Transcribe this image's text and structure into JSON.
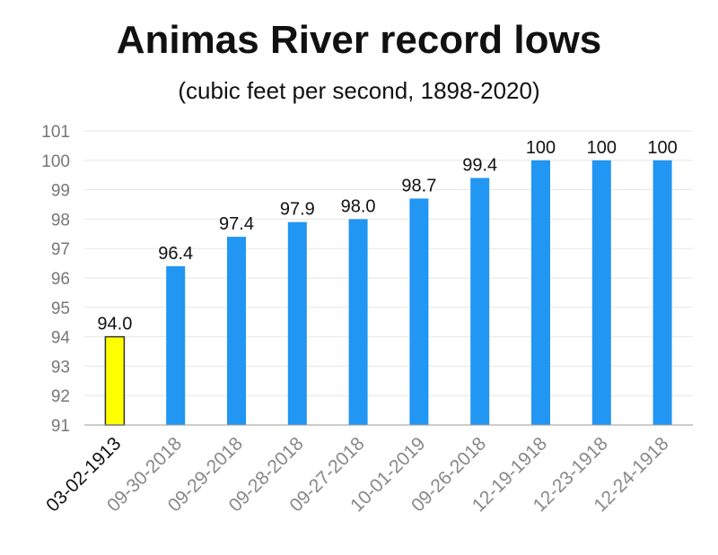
{
  "chart_data": {
    "type": "bar",
    "title": "Animas River record lows",
    "subtitle": "(cubic feet per second, 1898-2020)",
    "categories": [
      "03-02-1913",
      "09-30-2018",
      "09-29-2018",
      "09-28-2018",
      "09-27-2018",
      "10-01-2019",
      "09-26-2018",
      "12-19-1918",
      "12-23-1918",
      "12-24-1918"
    ],
    "values": [
      94.0,
      96.4,
      97.4,
      97.9,
      98.0,
      98.7,
      99.4,
      100,
      100,
      100
    ],
    "value_labels": [
      "94.0",
      "96.4",
      "97.4",
      "97.9",
      "98.0",
      "98.7",
      "99.4",
      "100",
      "100",
      "100"
    ],
    "highlight_index": 0,
    "colors": {
      "bar": "#2196F3",
      "highlight_bar": "#FFFF00",
      "highlight_border": "#333333",
      "grid": "#e6e6e6"
    },
    "ylim": [
      91,
      101
    ],
    "yticks": [
      91,
      92,
      93,
      94,
      95,
      96,
      97,
      98,
      99,
      100,
      101
    ],
    "grid": true,
    "xlabel": "",
    "ylabel": ""
  }
}
